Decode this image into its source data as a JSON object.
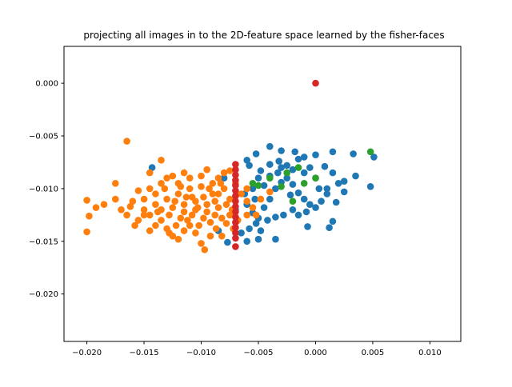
{
  "chart_data": {
    "type": "scatter",
    "title": "projecting all images in to the 2D-feature space learned by the fisher-faces",
    "xlabel": "",
    "ylabel": "",
    "xlim": [
      -0.022,
      0.0127
    ],
    "ylim": [
      -0.0245,
      0.0035
    ],
    "xticks": [
      -0.02,
      -0.015,
      -0.01,
      -0.005,
      0.0,
      0.005,
      0.01
    ],
    "xtick_labels": [
      "−0.020",
      "−0.015",
      "−0.010",
      "−0.005",
      "0.000",
      "0.005",
      "0.010"
    ],
    "yticks": [
      0.0,
      -0.005,
      -0.01,
      -0.015,
      -0.02
    ],
    "ytick_labels": [
      "0.000",
      "−0.005",
      "−0.010",
      "−0.015",
      "−0.020"
    ],
    "grid": false,
    "series": [
      {
        "color": "#1f77b4",
        "points": [
          [
            -0.006,
            -0.0073
          ],
          [
            -0.0052,
            -0.0067
          ],
          [
            -0.004,
            -0.006
          ],
          [
            -0.003,
            -0.0064
          ],
          [
            -0.0018,
            -0.0065
          ],
          [
            -0.001,
            -0.007
          ],
          [
            0.0,
            -0.0068
          ],
          [
            0.0015,
            -0.0065
          ],
          [
            0.0033,
            -0.0067
          ],
          [
            0.0051,
            -0.007
          ],
          [
            0.0048,
            -0.0098
          ],
          [
            0.0035,
            -0.0088
          ],
          [
            0.0025,
            -0.0093
          ],
          [
            0.0025,
            -0.0103
          ],
          [
            0.0018,
            -0.0113
          ],
          [
            0.0015,
            -0.0131
          ],
          [
            0.0012,
            -0.0137
          ],
          [
            -0.0007,
            -0.0136
          ],
          [
            -0.0035,
            -0.0148
          ],
          [
            -0.005,
            -0.0148
          ],
          [
            -0.006,
            -0.015
          ],
          [
            -0.0077,
            -0.0151
          ],
          [
            -0.0085,
            -0.014
          ],
          [
            -0.0143,
            -0.008
          ],
          [
            -0.008,
            -0.009
          ],
          [
            -0.007,
            -0.012
          ],
          [
            -0.0058,
            -0.0078
          ],
          [
            -0.0048,
            -0.0083
          ],
          [
            -0.004,
            -0.0077
          ],
          [
            -0.0032,
            -0.0074
          ],
          [
            -0.0025,
            -0.0078
          ],
          [
            -0.0015,
            -0.0072
          ],
          [
            -0.0005,
            -0.008
          ],
          [
            0.0008,
            -0.0079
          ],
          [
            0.0015,
            -0.0085
          ],
          [
            0.002,
            -0.0095
          ],
          [
            0.001,
            -0.01
          ],
          [
            0.0,
            -0.009
          ],
          [
            -0.001,
            -0.0085
          ],
          [
            -0.002,
            -0.0082
          ],
          [
            -0.003,
            -0.008
          ],
          [
            -0.004,
            -0.0088
          ],
          [
            -0.005,
            -0.009
          ],
          [
            -0.0055,
            -0.01
          ],
          [
            -0.0062,
            -0.0105
          ],
          [
            -0.006,
            -0.0115
          ],
          [
            -0.0055,
            -0.0123
          ],
          [
            -0.005,
            -0.0128
          ],
          [
            -0.0045,
            -0.0118
          ],
          [
            -0.004,
            -0.011
          ],
          [
            -0.0035,
            -0.01
          ],
          [
            -0.003,
            -0.0094
          ],
          [
            -0.0025,
            -0.009
          ],
          [
            -0.002,
            -0.0096
          ],
          [
            -0.0015,
            -0.0104
          ],
          [
            -0.001,
            -0.011
          ],
          [
            -0.0005,
            -0.0115
          ],
          [
            0.0,
            -0.0118
          ],
          [
            0.0005,
            -0.0112
          ],
          [
            0.001,
            -0.0105
          ],
          [
            -0.002,
            -0.012
          ],
          [
            -0.0028,
            -0.0125
          ],
          [
            -0.0035,
            -0.0127
          ],
          [
            -0.0042,
            -0.013
          ],
          [
            -0.0052,
            -0.0133
          ],
          [
            -0.0058,
            -0.0138
          ],
          [
            -0.0065,
            -0.0142
          ],
          [
            -0.0048,
            -0.014
          ],
          [
            -0.0015,
            -0.0125
          ],
          [
            -0.0008,
            -0.0122
          ],
          [
            0.0003,
            -0.01
          ],
          [
            -0.0033,
            -0.0085
          ],
          [
            -0.0045,
            -0.0097
          ],
          [
            -0.0053,
            -0.011
          ],
          [
            -0.0022,
            -0.0106
          ]
        ]
      },
      {
        "color": "#ff7f0e",
        "points": [
          [
            -0.0165,
            -0.0055
          ],
          [
            -0.0135,
            -0.0073
          ],
          [
            -0.0145,
            -0.0085
          ],
          [
            -0.0175,
            -0.0095
          ],
          [
            -0.02,
            -0.0111
          ],
          [
            -0.0198,
            -0.0126
          ],
          [
            -0.02,
            -0.0141
          ],
          [
            -0.0192,
            -0.0118
          ],
          [
            -0.0185,
            -0.0115
          ],
          [
            -0.0175,
            -0.011
          ],
          [
            -0.0162,
            -0.0117
          ],
          [
            -0.0155,
            -0.0102
          ],
          [
            -0.015,
            -0.011
          ],
          [
            -0.0145,
            -0.01
          ],
          [
            -0.014,
            -0.0105
          ],
          [
            -0.0135,
            -0.0095
          ],
          [
            -0.013,
            -0.009
          ],
          [
            -0.0125,
            -0.0088
          ],
          [
            -0.012,
            -0.0095
          ],
          [
            -0.0115,
            -0.0085
          ],
          [
            -0.011,
            -0.009
          ],
          [
            -0.01,
            -0.0088
          ],
          [
            -0.0095,
            -0.0082
          ],
          [
            -0.009,
            -0.0095
          ],
          [
            -0.0085,
            -0.009
          ],
          [
            -0.008,
            -0.0085
          ],
          [
            -0.0075,
            -0.0083
          ],
          [
            -0.0155,
            -0.013
          ],
          [
            -0.015,
            -0.0125
          ],
          [
            -0.0145,
            -0.014
          ],
          [
            -0.014,
            -0.0135
          ],
          [
            -0.0135,
            -0.013
          ],
          [
            -0.013,
            -0.0138
          ],
          [
            -0.0125,
            -0.0145
          ],
          [
            -0.012,
            -0.0148
          ],
          [
            -0.0115,
            -0.014
          ],
          [
            -0.011,
            -0.0135
          ],
          [
            -0.0105,
            -0.0142
          ],
          [
            -0.01,
            -0.0152
          ],
          [
            -0.0097,
            -0.0158
          ],
          [
            -0.0092,
            -0.0145
          ],
          [
            -0.0087,
            -0.0138
          ],
          [
            -0.0082,
            -0.0145
          ],
          [
            -0.0078,
            -0.0133
          ],
          [
            -0.0075,
            -0.0125
          ],
          [
            -0.015,
            -0.012
          ],
          [
            -0.014,
            -0.0115
          ],
          [
            -0.013,
            -0.011
          ],
          [
            -0.012,
            -0.0105
          ],
          [
            -0.011,
            -0.01
          ],
          [
            -0.01,
            -0.0098
          ],
          [
            -0.009,
            -0.0105
          ],
          [
            -0.008,
            -0.01
          ],
          [
            -0.007,
            -0.0095
          ],
          [
            -0.0065,
            -0.0105
          ],
          [
            -0.006,
            -0.0112
          ],
          [
            -0.0055,
            -0.0118
          ],
          [
            -0.006,
            -0.0125
          ],
          [
            -0.0068,
            -0.013
          ],
          [
            -0.0072,
            -0.0138
          ],
          [
            -0.0145,
            -0.0125
          ],
          [
            -0.0135,
            -0.012
          ],
          [
            -0.0125,
            -0.0118
          ],
          [
            -0.0115,
            -0.0115
          ],
          [
            -0.0105,
            -0.0112
          ],
          [
            -0.0095,
            -0.0115
          ],
          [
            -0.0085,
            -0.0118
          ],
          [
            -0.0078,
            -0.0115
          ],
          [
            -0.0088,
            -0.0125
          ],
          [
            -0.0098,
            -0.0128
          ],
          [
            -0.0108,
            -0.0125
          ],
          [
            -0.0118,
            -0.0128
          ],
          [
            -0.0128,
            -0.0125
          ],
          [
            -0.0138,
            -0.0122
          ],
          [
            -0.0122,
            -0.0135
          ],
          [
            -0.0112,
            -0.013
          ],
          [
            -0.0102,
            -0.0135
          ],
          [
            -0.0092,
            -0.0132
          ],
          [
            -0.0082,
            -0.0128
          ],
          [
            -0.0132,
            -0.01
          ],
          [
            -0.0118,
            -0.0098
          ],
          [
            -0.0108,
            -0.0108
          ],
          [
            -0.0098,
            -0.0108
          ],
          [
            -0.0088,
            -0.0112
          ],
          [
            -0.0115,
            -0.0122
          ],
          [
            -0.0105,
            -0.012
          ],
          [
            -0.0095,
            -0.0122
          ],
          [
            -0.0085,
            -0.0105
          ],
          [
            -0.0075,
            -0.011
          ],
          [
            -0.016,
            -0.0112
          ],
          [
            -0.017,
            -0.012
          ],
          [
            -0.0158,
            -0.0135
          ],
          [
            -0.0165,
            -0.0125
          ],
          [
            -0.0123,
            -0.0112
          ],
          [
            -0.0113,
            -0.0108
          ],
          [
            -0.0103,
            -0.0118
          ],
          [
            -0.0093,
            -0.01
          ],
          [
            -0.0083,
            -0.0095
          ],
          [
            -0.0073,
            -0.012
          ],
          [
            -0.0128,
            -0.0142
          ],
          [
            -0.004,
            -0.0103
          ],
          [
            -0.0048,
            -0.011
          ],
          [
            -0.006,
            -0.01
          ],
          [
            -0.0052,
            -0.0125
          ]
        ]
      },
      {
        "color": "#2ca02c",
        "points": [
          [
            0.0048,
            -0.0065
          ],
          [
            -0.0015,
            -0.008
          ],
          [
            -0.0025,
            -0.0085
          ],
          [
            -0.004,
            -0.009
          ],
          [
            -0.005,
            -0.0097
          ],
          [
            -0.003,
            -0.0098
          ],
          [
            -0.001,
            -0.0095
          ],
          [
            0.0,
            -0.009
          ],
          [
            -0.0055,
            -0.0095
          ],
          [
            -0.002,
            -0.0112
          ]
        ]
      },
      {
        "color": "#d62728",
        "points": [
          [
            0.0,
            0.0
          ],
          [
            -0.007,
            -0.0077
          ],
          [
            -0.007,
            -0.0082
          ],
          [
            -0.007,
            -0.0087
          ],
          [
            -0.007,
            -0.0092
          ],
          [
            -0.007,
            -0.0097
          ],
          [
            -0.007,
            -0.0102
          ],
          [
            -0.007,
            -0.0107
          ],
          [
            -0.007,
            -0.0112
          ],
          [
            -0.007,
            -0.0117
          ],
          [
            -0.007,
            -0.0122
          ],
          [
            -0.007,
            -0.0127
          ],
          [
            -0.007,
            -0.0132
          ],
          [
            -0.007,
            -0.0137
          ],
          [
            -0.007,
            -0.0142
          ],
          [
            -0.007,
            -0.0147
          ],
          [
            -0.007,
            -0.0155
          ]
        ]
      }
    ]
  }
}
